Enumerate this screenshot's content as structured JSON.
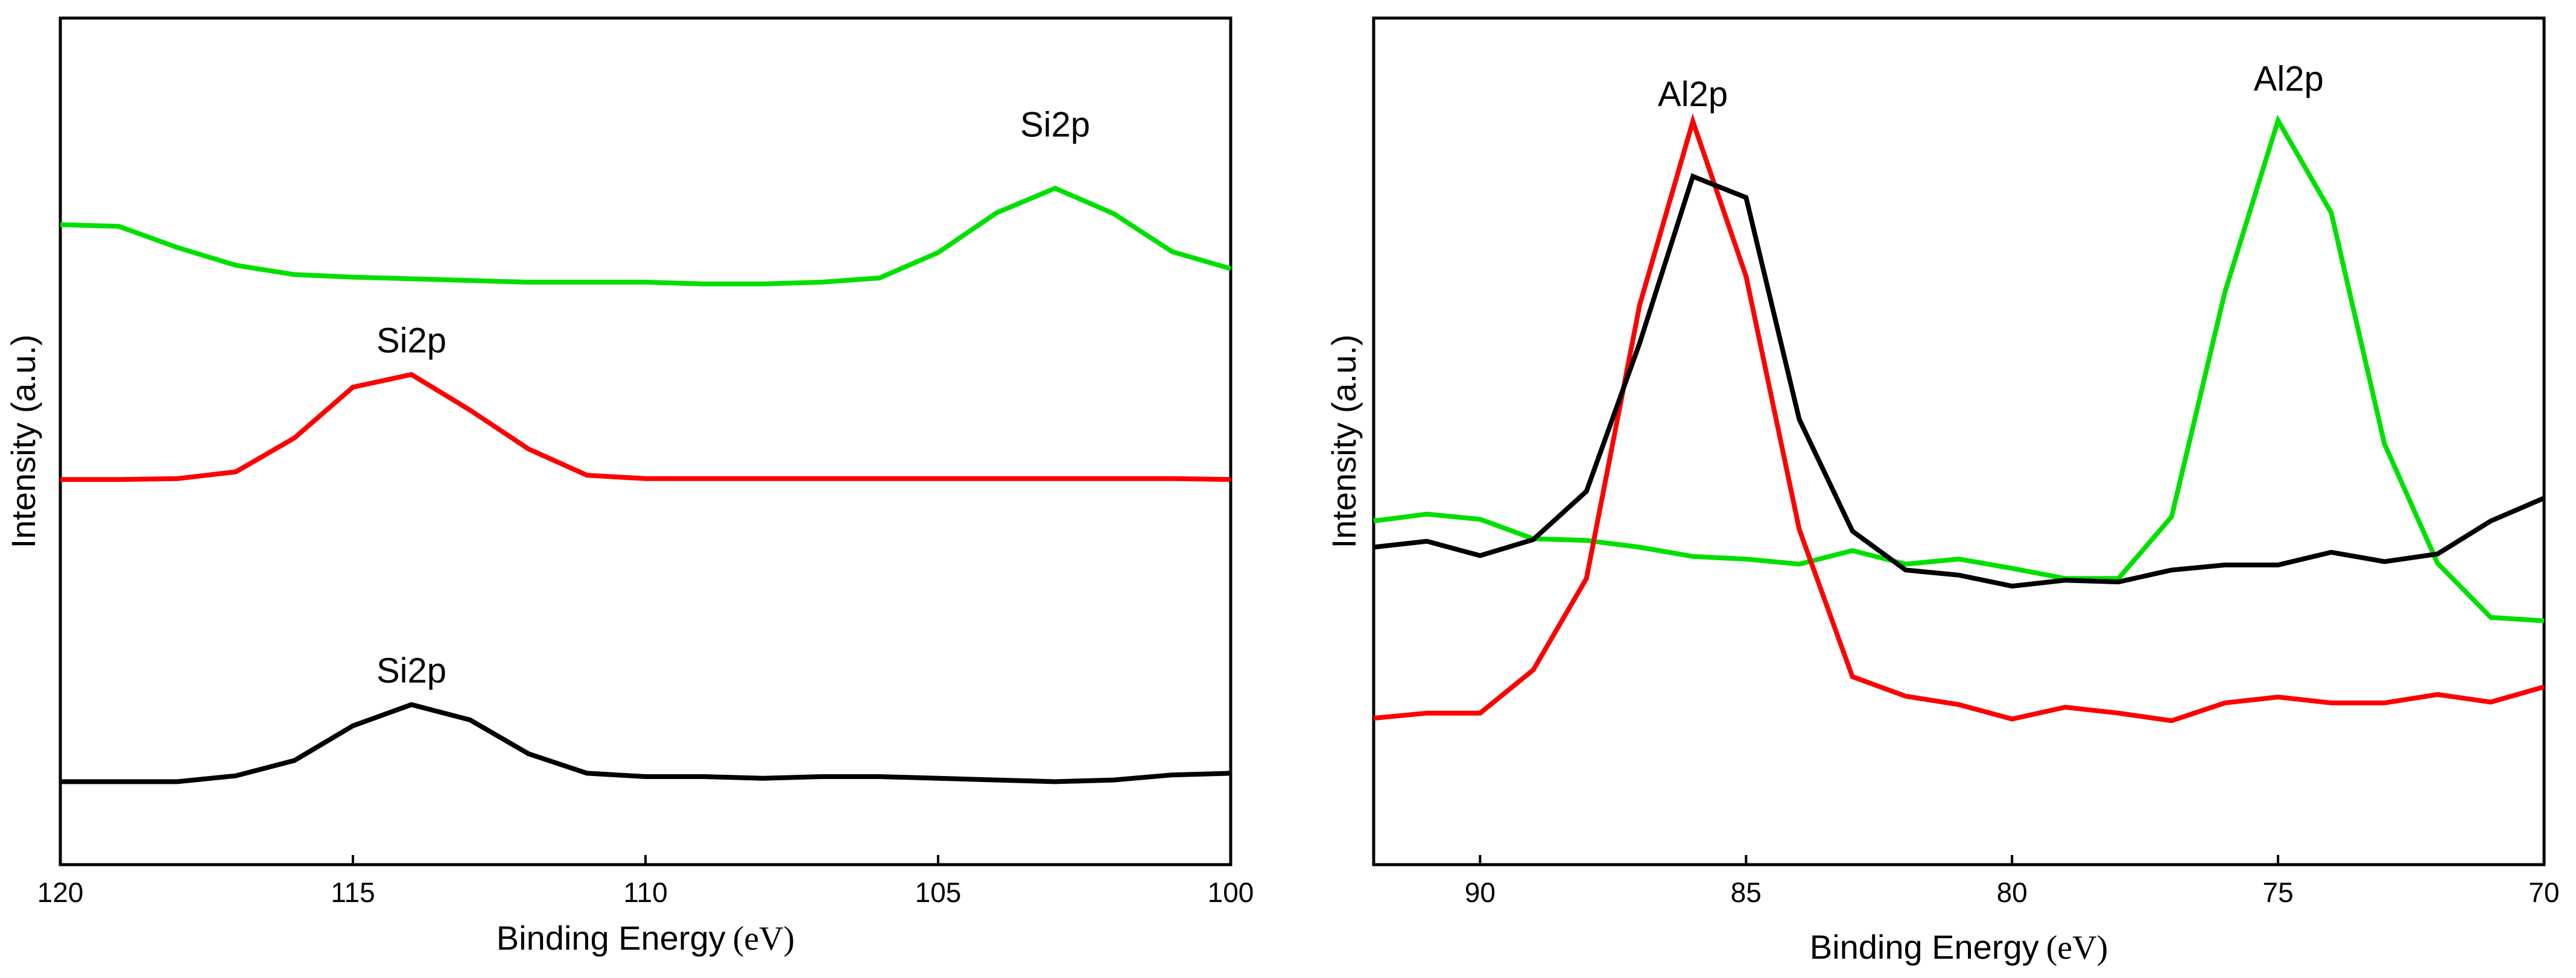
{
  "chart_data": [
    {
      "type": "line",
      "title": "",
      "xlabel_text": "Binding Energy",
      "xlabel_unit": "(eV)",
      "ylabel": "Intensity (a.u.)",
      "xlim": [
        120,
        100
      ],
      "x_reversed": true,
      "ylim": [
        0,
        100
      ],
      "x_ticks": [
        {
          "value": 120,
          "label": "120"
        },
        {
          "value": 115,
          "label": "115"
        },
        {
          "value": 110,
          "label": "110"
        },
        {
          "value": 105,
          "label": "105"
        },
        {
          "value": 100,
          "label": "100"
        }
      ],
      "series": [
        {
          "name": "green",
          "color": "#00e000",
          "points": [
            [
              120,
              75.6
            ],
            [
              119,
              75.4
            ],
            [
              118,
              72.9
            ],
            [
              117,
              70.8
            ],
            [
              116,
              69.7
            ],
            [
              115,
              69.4
            ],
            [
              114,
              69.2
            ],
            [
              113,
              69.0
            ],
            [
              112,
              68.8
            ],
            [
              111,
              68.8
            ],
            [
              110,
              68.8
            ],
            [
              109,
              68.6
            ],
            [
              108,
              68.6
            ],
            [
              107,
              68.8
            ],
            [
              106,
              69.3
            ],
            [
              105,
              72.3
            ],
            [
              104,
              77.0
            ],
            [
              103,
              79.9
            ],
            [
              102,
              76.9
            ],
            [
              101,
              72.4
            ],
            [
              100,
              70.4
            ]
          ]
        },
        {
          "name": "red",
          "color": "#ff0000",
          "points": [
            [
              120,
              45.5
            ],
            [
              119,
              45.5
            ],
            [
              118,
              45.6
            ],
            [
              117,
              46.4
            ],
            [
              116,
              50.4
            ],
            [
              115,
              56.4
            ],
            [
              114,
              57.9
            ],
            [
              113,
              53.7
            ],
            [
              112,
              49.1
            ],
            [
              111,
              46.0
            ],
            [
              110,
              45.6
            ],
            [
              109,
              45.6
            ],
            [
              108,
              45.6
            ],
            [
              107,
              45.6
            ],
            [
              106,
              45.6
            ],
            [
              105,
              45.6
            ],
            [
              104,
              45.6
            ],
            [
              103,
              45.6
            ],
            [
              102,
              45.6
            ],
            [
              101,
              45.6
            ],
            [
              100,
              45.5
            ]
          ]
        },
        {
          "name": "black",
          "color": "#000000",
          "points": [
            [
              120,
              9.8
            ],
            [
              119,
              9.8
            ],
            [
              118,
              9.8
            ],
            [
              117,
              10.5
            ],
            [
              116,
              12.3
            ],
            [
              115,
              16.4
            ],
            [
              114,
              18.9
            ],
            [
              113,
              17.1
            ],
            [
              112,
              13.1
            ],
            [
              111,
              10.8
            ],
            [
              110,
              10.4
            ],
            [
              109,
              10.4
            ],
            [
              108,
              10.2
            ],
            [
              107,
              10.4
            ],
            [
              106,
              10.4
            ],
            [
              105,
              10.2
            ],
            [
              104,
              10.0
            ],
            [
              103,
              9.8
            ],
            [
              102,
              10.0
            ],
            [
              101,
              10.6
            ],
            [
              100,
              10.8
            ]
          ]
        }
      ],
      "annotations": [
        {
          "text": "Si2p",
          "x": 103,
          "y": 86
        },
        {
          "text": "Si2p",
          "x": 114,
          "y": 60.5
        },
        {
          "text": "Si2p",
          "x": 114,
          "y": 21.5
        }
      ]
    },
    {
      "type": "line",
      "title": "",
      "xlabel_text": "Binding Energy",
      "xlabel_unit": "(eV)",
      "ylabel": "Intensity (a.u.)",
      "xlim": [
        92,
        70
      ],
      "x_reversed": true,
      "ylim": [
        0,
        100
      ],
      "x_ticks": [
        {
          "value": 90,
          "label": "90"
        },
        {
          "value": 85,
          "label": "85"
        },
        {
          "value": 80,
          "label": "80"
        },
        {
          "value": 75,
          "label": "75"
        },
        {
          "value": 70,
          "label": "70"
        }
      ],
      "series": [
        {
          "name": "green",
          "color": "#00e000",
          "points": [
            [
              92,
              40.6
            ],
            [
              91,
              41.4
            ],
            [
              90,
              40.8
            ],
            [
              89,
              38.5
            ],
            [
              88,
              38.3
            ],
            [
              87,
              37.5
            ],
            [
              86,
              36.4
            ],
            [
              85,
              36.1
            ],
            [
              84,
              35.5
            ],
            [
              83,
              37.1
            ],
            [
              82,
              35.5
            ],
            [
              81,
              36.1
            ],
            [
              80,
              35.0
            ],
            [
              79,
              33.8
            ],
            [
              78,
              33.8
            ],
            [
              77,
              41.1
            ],
            [
              76,
              67.6
            ],
            [
              75,
              87.9
            ],
            [
              74,
              77.0
            ],
            [
              73,
              49.7
            ],
            [
              72,
              35.6
            ],
            [
              71,
              29.2
            ],
            [
              70,
              28.8
            ]
          ]
        },
        {
          "name": "red",
          "color": "#ff0000",
          "points": [
            [
              92,
              17.3
            ],
            [
              91,
              17.9
            ],
            [
              90,
              17.9
            ],
            [
              89,
              23.0
            ],
            [
              88,
              33.8
            ],
            [
              87,
              66.1
            ],
            [
              86,
              87.8
            ],
            [
              85,
              69.5
            ],
            [
              84,
              39.6
            ],
            [
              83,
              22.2
            ],
            [
              82,
              19.9
            ],
            [
              81,
              18.9
            ],
            [
              80,
              17.2
            ],
            [
              79,
              18.6
            ],
            [
              78,
              17.9
            ],
            [
              77,
              17.0
            ],
            [
              76,
              19.1
            ],
            [
              75,
              19.8
            ],
            [
              74,
              19.1
            ],
            [
              73,
              19.1
            ],
            [
              72,
              20.1
            ],
            [
              71,
              19.2
            ],
            [
              70,
              21.0
            ]
          ]
        },
        {
          "name": "black",
          "color": "#000000",
          "points": [
            [
              92,
              37.5
            ],
            [
              91,
              38.2
            ],
            [
              90,
              36.5
            ],
            [
              89,
              38.4
            ],
            [
              88,
              44.1
            ],
            [
              87,
              61.6
            ],
            [
              86,
              81.3
            ],
            [
              85,
              78.8
            ],
            [
              84,
              52.6
            ],
            [
              83,
              39.4
            ],
            [
              82,
              34.8
            ],
            [
              81,
              34.2
            ],
            [
              80,
              32.9
            ],
            [
              79,
              33.6
            ],
            [
              78,
              33.4
            ],
            [
              77,
              34.8
            ],
            [
              76,
              35.4
            ],
            [
              75,
              35.4
            ],
            [
              74,
              36.9
            ],
            [
              73,
              35.8
            ],
            [
              72,
              36.7
            ],
            [
              71,
              40.6
            ],
            [
              70,
              43.3
            ]
          ]
        }
      ],
      "annotations": [
        {
          "text": "Al2p",
          "x": 86,
          "y": 89.6
        },
        {
          "text": "Al2p",
          "x": 74.8,
          "y": 91.4
        }
      ]
    }
  ]
}
